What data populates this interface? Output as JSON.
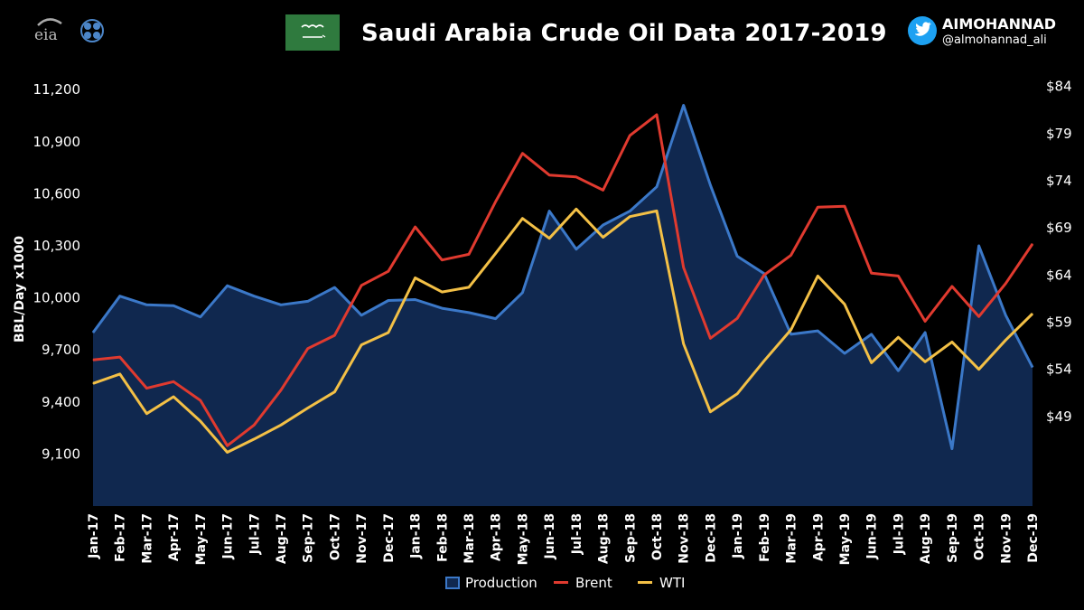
{
  "header": {
    "title": "Saudi Arabia Crude Oil Data 2017-2019",
    "eia_logo": "eia",
    "opec_logo_icon": "opec-logo-icon",
    "flag_icon": "saudi-flag-icon",
    "twitter_icon": "twitter-bird-icon",
    "handle_name": "AIMOHANNAD",
    "handle_tag": "@almohannad_ali"
  },
  "colors": {
    "background": "#000000",
    "production_fill": "#10284f",
    "production_line": "#3b78c8",
    "brent": "#e03a2f",
    "wti": "#f3c046",
    "flag": "#2f7a3e"
  },
  "chart_data": {
    "type": "line",
    "title": "Saudi Arabia Crude Oil Data 2017-2019",
    "ylabel": "BBL/Day x1000",
    "ylim": [
      8800,
      11300
    ],
    "y2lim": [
      39.5,
      85.5
    ],
    "y_ticks": [
      "11,200",
      "10,900",
      "10,600",
      "10,300",
      "10,000",
      "9,700",
      "9,400",
      "9,100"
    ],
    "y_tick_values": [
      11200,
      10900,
      10600,
      10300,
      10000,
      9700,
      9400,
      9100
    ],
    "y2_ticks": [
      "$84",
      "$79",
      "$74",
      "$69",
      "$64",
      "$59",
      "$54",
      "$49"
    ],
    "y2_tick_values": [
      84,
      79,
      74,
      69,
      64,
      59,
      54,
      49
    ],
    "categories": [
      "Jan-17",
      "Feb-17",
      "Mar-17",
      "Apr-17",
      "May-17",
      "Jun-17",
      "Jul-17",
      "Aug-17",
      "Sep-17",
      "Oct-17",
      "Nov-17",
      "Dec-17",
      "Jan-18",
      "Feb-18",
      "Mar-18",
      "Apr-18",
      "May-18",
      "Jun-18",
      "Jul-18",
      "Aug-18",
      "Sep-18",
      "Oct-18",
      "Nov-18",
      "Dec-18",
      "Jan-19",
      "Feb-19",
      "Mar-19",
      "Apr-19",
      "May-19",
      "Jun-19",
      "Jul-19",
      "Aug-19",
      "Sep-19",
      "Oct-19",
      "Nov-19",
      "Dec-19"
    ],
    "series": [
      {
        "name": "Production",
        "axis": "left",
        "style": "area",
        "values": [
          9800,
          10010,
          9960,
          9955,
          9890,
          10070,
          10010,
          9960,
          9980,
          10060,
          9900,
          9985,
          9990,
          9940,
          9915,
          9880,
          10030,
          10500,
          10280,
          10420,
          10500,
          10640,
          11110,
          10650,
          10240,
          10140,
          9790,
          9810,
          9680,
          9790,
          9580,
          9800,
          9130,
          10300,
          9900,
          9600
        ]
      },
      {
        "name": "Brent",
        "axis": "right",
        "style": "line",
        "values": [
          55.0,
          55.3,
          52.0,
          52.7,
          50.7,
          45.9,
          48.1,
          51.8,
          56.2,
          57.6,
          62.9,
          64.4,
          69.1,
          65.6,
          66.2,
          71.8,
          76.9,
          74.6,
          74.4,
          73.0,
          78.8,
          81.0,
          64.8,
          57.3,
          59.4,
          64.0,
          66.1,
          71.2,
          71.3,
          64.2,
          63.9,
          59.1,
          62.8,
          59.6,
          63.1,
          67.3
        ]
      },
      {
        "name": "WTI",
        "axis": "right",
        "style": "line",
        "values": [
          52.5,
          53.5,
          49.3,
          51.1,
          48.5,
          45.2,
          46.6,
          48.1,
          49.9,
          51.6,
          56.6,
          57.9,
          63.7,
          62.2,
          62.7,
          66.3,
          70.0,
          67.9,
          71.0,
          68.0,
          70.2,
          70.8,
          56.7,
          49.5,
          51.4,
          54.9,
          58.2,
          63.9,
          60.9,
          54.7,
          57.4,
          54.8,
          56.9,
          54.0,
          57.1,
          59.9
        ]
      }
    ],
    "legend": [
      {
        "label": "Production",
        "swatch": "box"
      },
      {
        "label": "Brent",
        "swatch": "line"
      },
      {
        "label": "WTI",
        "swatch": "line"
      }
    ],
    "legend_position": "bottom-center",
    "grid": false
  }
}
